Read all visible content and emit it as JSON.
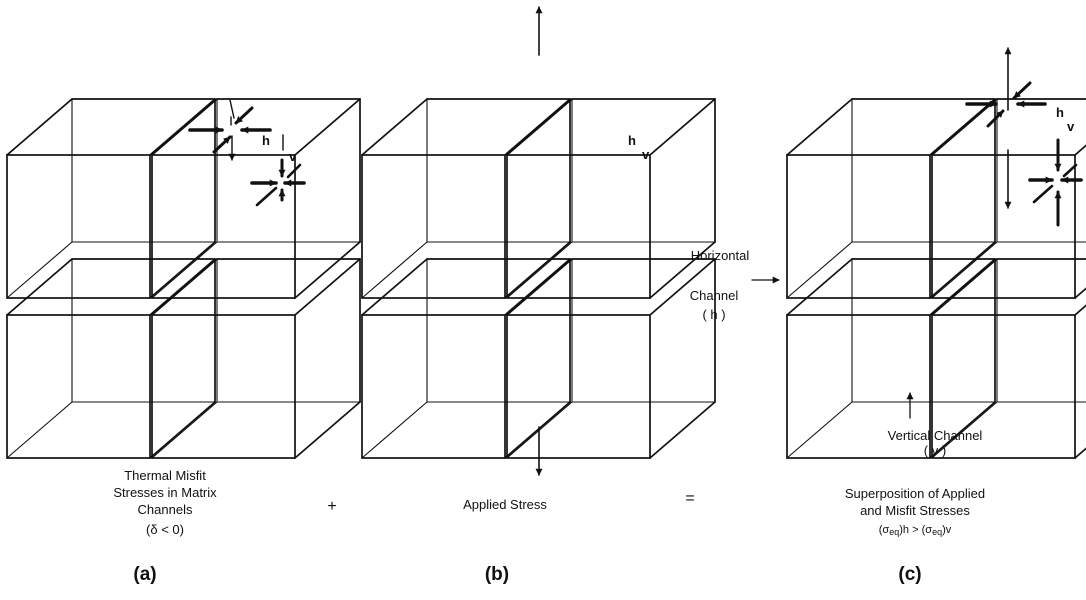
{
  "panels": {
    "a": {
      "caption_lines": [
        "Thermal  Misfit",
        "Stresses in Matrix",
        "Channels",
        "(δ < 0)"
      ],
      "letter": "(a)",
      "h_label": "h",
      "v_label": "v"
    },
    "b": {
      "caption": "Applied Stress",
      "letter": "(b)",
      "h_label": "h",
      "v_label": "v"
    },
    "c": {
      "caption_lines": [
        "Superposition of Applied",
        "and Misfit Stresses"
      ],
      "inequality": {
        "sigma": "σ",
        "sub": "eq",
        "h": "h",
        "v": "v",
        "op": ">"
      },
      "letter": "(c)",
      "h_label": "h",
      "v_label": "v"
    }
  },
  "operators": {
    "plus": "+",
    "equals": "="
  },
  "channel_labels": {
    "horizontal_line1": "Horizontal",
    "horizontal_line2": "Channel",
    "horizontal_abbr": "( h )",
    "vertical_line1": "Vertical Channel",
    "vertical_abbr": "( v )"
  }
}
